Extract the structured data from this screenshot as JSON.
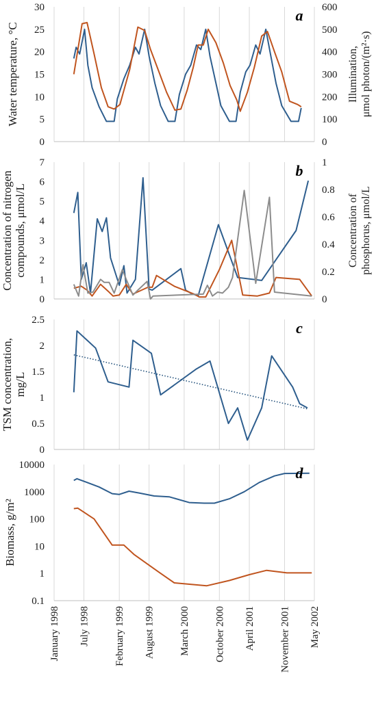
{
  "x_axis": {
    "type": "date",
    "min": "1998-01-01",
    "max": "2002-05-01",
    "tick_dates": [
      "1998-01-01",
      "1998-07-01",
      "1999-02-01",
      "1999-08-01",
      "2000-03-01",
      "2000-10-01",
      "2001-04-01",
      "2001-11-01",
      "2002-05-01"
    ],
    "tick_labels": [
      "January 1998",
      "July 1998",
      "February 1999",
      "August 1999",
      "March 2000",
      "October 2000",
      "April 2001",
      "November 2001",
      "May 2002"
    ]
  },
  "chart_data": [
    {
      "type": "line",
      "panel_letter": "a",
      "ylabel": "Water temperature, °C",
      "ylim": [
        0,
        30
      ],
      "y_ticks": [
        "0",
        "5",
        "10",
        "15",
        "20",
        "25",
        "30"
      ],
      "y2label_line1": "Illumination,",
      "y2label_line2": "μmol photon/(m²·s)",
      "y2lim": [
        0,
        600
      ],
      "y2_ticks": [
        "0",
        "100",
        "200",
        "300",
        "400",
        "500",
        "600"
      ],
      "grid": "vertical",
      "series": [
        {
          "axis": "left",
          "color": "#2E5E8E",
          "points": [
            [
              "1998-05-01",
              18.5
            ],
            [
              "1998-05-15",
              21
            ],
            [
              "1998-06-05",
              19.5
            ],
            [
              "1998-07-05",
              25
            ],
            [
              "1998-07-25",
              17
            ],
            [
              "1998-08-20",
              12
            ],
            [
              "1998-10-01",
              7.8
            ],
            [
              "1998-11-15",
              4.5
            ],
            [
              "1999-01-01",
              4.5
            ],
            [
              "1999-01-20",
              9.5
            ],
            [
              "1999-03-01",
              14
            ],
            [
              "1999-04-05",
              17
            ],
            [
              "1999-05-10",
              21
            ],
            [
              "1999-06-01",
              19.5
            ],
            [
              "1999-07-05",
              25
            ],
            [
              "1999-08-01",
              19
            ],
            [
              "1999-09-05",
              13
            ],
            [
              "1999-10-10",
              8
            ],
            [
              "1999-11-25",
              4.5
            ],
            [
              "2000-01-05",
              4.5
            ],
            [
              "2000-02-01",
              10.5
            ],
            [
              "2000-03-10",
              15
            ],
            [
              "2000-04-10",
              17
            ],
            [
              "2000-05-15",
              21.5
            ],
            [
              "2000-06-10",
              20.5
            ],
            [
              "2000-07-10",
              25
            ],
            [
              "2000-08-05",
              19
            ],
            [
              "2000-09-10",
              13
            ],
            [
              "2000-10-10",
              8
            ],
            [
              "2000-12-01",
              4.5
            ],
            [
              "2001-01-10",
              4.5
            ],
            [
              "2001-02-05",
              11
            ],
            [
              "2001-03-10",
              15.5
            ],
            [
              "2001-04-05",
              17
            ],
            [
              "2001-05-10",
              21.5
            ],
            [
              "2001-06-05",
              19.5
            ],
            [
              "2001-07-10",
              25
            ],
            [
              "2001-08-10",
              19
            ],
            [
              "2001-09-10",
              13
            ],
            [
              "2001-10-15",
              8
            ],
            [
              "2001-12-10",
              4.5
            ],
            [
              "2002-01-25",
              4.5
            ],
            [
              "2002-02-10",
              7.5
            ]
          ]
        },
        {
          "axis": "right",
          "color": "#C0541E",
          "points": [
            [
              "1998-05-01",
              300
            ],
            [
              "1998-06-20",
              525
            ],
            [
              "1998-07-20",
              530
            ],
            [
              "1998-09-01",
              390
            ],
            [
              "1998-10-15",
              240
            ],
            [
              "1998-11-25",
              155
            ],
            [
              "1999-01-01",
              145
            ],
            [
              "1999-02-05",
              165
            ],
            [
              "1999-04-05",
              320
            ],
            [
              "1999-05-25",
              510
            ],
            [
              "1999-07-05",
              495
            ],
            [
              "1999-08-10",
              410
            ],
            [
              "1999-09-25",
              320
            ],
            [
              "1999-11-15",
              220
            ],
            [
              "2000-01-05",
              140
            ],
            [
              "2000-02-10",
              145
            ],
            [
              "2000-03-20",
              230
            ],
            [
              "2000-04-25",
              330
            ],
            [
              "2000-05-25",
              430
            ],
            [
              "2000-06-25",
              430
            ],
            [
              "2000-07-25",
              500
            ],
            [
              "2000-09-10",
              440
            ],
            [
              "2000-10-25",
              350
            ],
            [
              "2000-12-05",
              250
            ],
            [
              "2001-01-15",
              185
            ],
            [
              "2001-02-05",
              135
            ],
            [
              "2001-03-20",
              220
            ],
            [
              "2001-05-01",
              330
            ],
            [
              "2001-06-15",
              470
            ],
            [
              "2001-07-20",
              490
            ],
            [
              "2001-09-01",
              400
            ],
            [
              "2001-10-15",
              310
            ],
            [
              "2001-12-01",
              180
            ],
            [
              "2002-01-20",
              165
            ],
            [
              "2002-02-10",
              155
            ]
          ]
        }
      ]
    },
    {
      "type": "line",
      "panel_letter": "b",
      "ylabel_line1": "Concentration of nitrogen",
      "ylabel_line2": "compounds, μmol/L",
      "ylim": [
        0,
        7
      ],
      "y_ticks": [
        "0",
        "1",
        "2",
        "3",
        "4",
        "5",
        "6",
        "7"
      ],
      "y2label_line1": "Concentration of",
      "y2label_line2": "phosphorus, μmol/L",
      "y2lim": [
        0,
        1
      ],
      "y2_ticks": [
        "0",
        "0.2",
        "0.4",
        "0.6",
        "0.8",
        "1"
      ],
      "grid": "vertical",
      "series": [
        {
          "axis": "left",
          "color": "#2E5E8E",
          "points": [
            [
              "1998-05-01",
              4.4
            ],
            [
              "1998-05-25",
              5.45
            ],
            [
              "1998-06-15",
              1.0
            ],
            [
              "1998-07-15",
              1.85
            ],
            [
              "1998-08-10",
              0.3
            ],
            [
              "1998-09-20",
              4.1
            ],
            [
              "1998-10-20",
              3.45
            ],
            [
              "1998-11-15",
              4.15
            ],
            [
              "1998-12-10",
              2.1
            ],
            [
              "1999-02-01",
              0.7
            ],
            [
              "1999-03-01",
              1.7
            ],
            [
              "1999-03-20",
              0.3
            ],
            [
              "1999-05-10",
              1.0
            ],
            [
              "1999-06-25",
              6.2
            ],
            [
              "1999-08-01",
              0.5
            ],
            [
              "1999-08-20",
              0.45
            ],
            [
              "2000-02-10",
              1.55
            ],
            [
              "2000-03-10",
              0.45
            ],
            [
              "2000-04-10",
              0.3
            ],
            [
              "2000-05-25",
              0.15
            ],
            [
              "2000-09-25",
              3.8
            ],
            [
              "2001-01-20",
              1.1
            ],
            [
              "2001-06-15",
              0.95
            ],
            [
              "2002-01-10",
              3.5
            ],
            [
              "2002-03-25",
              6.05
            ]
          ]
        },
        {
          "axis": "left",
          "color": "#C0541E",
          "points": [
            [
              "1998-05-01",
              0.55
            ],
            [
              "1998-06-15",
              0.65
            ],
            [
              "1998-07-20",
              0.45
            ],
            [
              "1998-08-20",
              0.15
            ],
            [
              "1998-10-10",
              0.75
            ],
            [
              "1998-11-25",
              0.4
            ],
            [
              "1998-12-25",
              0.15
            ],
            [
              "1999-02-01",
              0.2
            ],
            [
              "1999-03-15",
              0.75
            ],
            [
              "1999-04-25",
              0.25
            ],
            [
              "1999-07-25",
              0.6
            ],
            [
              "1999-08-20",
              0.6
            ],
            [
              "1999-09-15",
              1.2
            ],
            [
              "2000-01-01",
              0.65
            ],
            [
              "2000-05-01",
              0.25
            ],
            [
              "2000-06-01",
              0.1
            ],
            [
              "2000-07-10",
              0.1
            ],
            [
              "2000-10-01",
              1.5
            ],
            [
              "2000-12-15",
              3.0
            ],
            [
              "2001-02-20",
              0.2
            ],
            [
              "2001-05-20",
              0.15
            ],
            [
              "2001-08-01",
              0.3
            ],
            [
              "2001-09-10",
              1.1
            ],
            [
              "2002-02-01",
              1.0
            ],
            [
              "2002-04-15",
              0.15
            ]
          ]
        },
        {
          "axis": "left",
          "color": "#8C8C8C",
          "points": [
            [
              "1998-05-01",
              0.75
            ],
            [
              "1998-05-30",
              0.15
            ],
            [
              "1998-06-25",
              1.75
            ],
            [
              "1998-07-25",
              0.3
            ],
            [
              "1998-08-25",
              0.35
            ],
            [
              "1998-10-10",
              1.0
            ],
            [
              "1998-11-01",
              0.85
            ],
            [
              "1998-12-01",
              0.85
            ],
            [
              "1999-01-01",
              0.3
            ],
            [
              "1999-02-20",
              1.5
            ],
            [
              "1999-03-15",
              1.0
            ],
            [
              "1999-04-25",
              0.2
            ],
            [
              "1999-05-25",
              0.45
            ],
            [
              "1999-07-20",
              0.9
            ],
            [
              "1999-08-10",
              0.0
            ],
            [
              "1999-08-25",
              0.15
            ],
            [
              "2000-06-25",
              0.25
            ],
            [
              "2000-07-20",
              0.7
            ],
            [
              "2000-08-20",
              0.15
            ],
            [
              "2000-09-20",
              0.35
            ],
            [
              "2000-10-20",
              0.3
            ],
            [
              "2000-11-25",
              0.6
            ],
            [
              "2000-12-20",
              1.1
            ],
            [
              "2001-03-01",
              5.55
            ],
            [
              "2001-05-10",
              0.8
            ],
            [
              "2001-08-01",
              5.2
            ],
            [
              "2001-09-01",
              0.35
            ],
            [
              "2002-04-15",
              0.15
            ]
          ]
        }
      ]
    },
    {
      "type": "line",
      "panel_letter": "c",
      "ylabel_line1": "TSM concentration,",
      "ylabel_line2": "mg/L",
      "ylim": [
        0,
        2.5
      ],
      "y_ticks": [
        "0",
        "0.5",
        "1",
        "1.5",
        "2",
        "2.5"
      ],
      "grid": "vertical",
      "series": [
        {
          "color": "#2E5E8E",
          "points": [
            [
              "1998-05-01",
              1.1
            ],
            [
              "1998-05-20",
              2.28
            ],
            [
              "1998-09-10",
              1.95
            ],
            [
              "1998-11-25",
              1.3
            ],
            [
              "1999-04-01",
              1.2
            ],
            [
              "1999-04-25",
              2.1
            ],
            [
              "1999-08-15",
              1.85
            ],
            [
              "1999-10-10",
              1.05
            ],
            [
              "2000-05-15",
              1.55
            ],
            [
              "2000-08-05",
              1.7
            ],
            [
              "2000-11-25",
              0.5
            ],
            [
              "2001-01-20",
              0.8
            ],
            [
              "2001-03-20",
              0.18
            ],
            [
              "2001-06-15",
              0.8
            ],
            [
              "2001-08-15",
              1.8
            ],
            [
              "2001-12-20",
              1.2
            ],
            [
              "2002-02-01",
              0.88
            ],
            [
              "2002-03-20",
              0.8
            ]
          ]
        }
      ],
      "trendline": {
        "color": "#1F4E79",
        "style": "dotted",
        "points": [
          [
            "1998-05-01",
            1.82
          ],
          [
            "2002-03-20",
            0.78
          ]
        ]
      }
    },
    {
      "type": "line",
      "panel_letter": "d",
      "ylabel": "Biomass, g/m²",
      "yscale": "log",
      "ylim": [
        0.1,
        10000
      ],
      "y_ticks": [
        "0.1",
        "1",
        "10",
        "100",
        "1000",
        "10000"
      ],
      "grid": "vertical",
      "series": [
        {
          "color": "#2E5E8E",
          "points": [
            [
              "1998-05-01",
              2600
            ],
            [
              "1998-05-20",
              3000
            ],
            [
              "1998-07-20",
              2200
            ],
            [
              "1998-10-01",
              1500
            ],
            [
              "1998-12-20",
              850
            ],
            [
              "1999-02-01",
              800
            ],
            [
              "1999-04-01",
              1050
            ],
            [
              "1999-06-01",
              900
            ],
            [
              "1999-09-01",
              700
            ],
            [
              "1999-12-01",
              650
            ],
            [
              "2000-04-01",
              400
            ],
            [
              "2000-07-01",
              380
            ],
            [
              "2000-09-01",
              380
            ],
            [
              "2000-12-01",
              550
            ],
            [
              "2001-03-01",
              1000
            ],
            [
              "2001-06-01",
              2200
            ],
            [
              "2001-09-01",
              3800
            ],
            [
              "2001-11-01",
              4700
            ],
            [
              "2002-04-01",
              4800
            ]
          ]
        },
        {
          "color": "#C0541E",
          "points": [
            [
              "1998-05-01",
              240
            ],
            [
              "1998-05-25",
              250
            ],
            [
              "1998-09-01",
              100
            ],
            [
              "1998-12-20",
              11
            ],
            [
              "1999-03-01",
              11
            ],
            [
              "1999-05-01",
              5
            ],
            [
              "1999-08-01",
              2
            ],
            [
              "1999-10-01",
              1.1
            ],
            [
              "2000-01-01",
              0.45
            ],
            [
              "2000-07-15",
              0.35
            ],
            [
              "2000-12-01",
              0.55
            ],
            [
              "2001-04-01",
              0.9
            ],
            [
              "2001-07-15",
              1.3
            ],
            [
              "2001-11-15",
              1.05
            ],
            [
              "2002-04-15",
              1.05
            ]
          ]
        }
      ]
    }
  ]
}
